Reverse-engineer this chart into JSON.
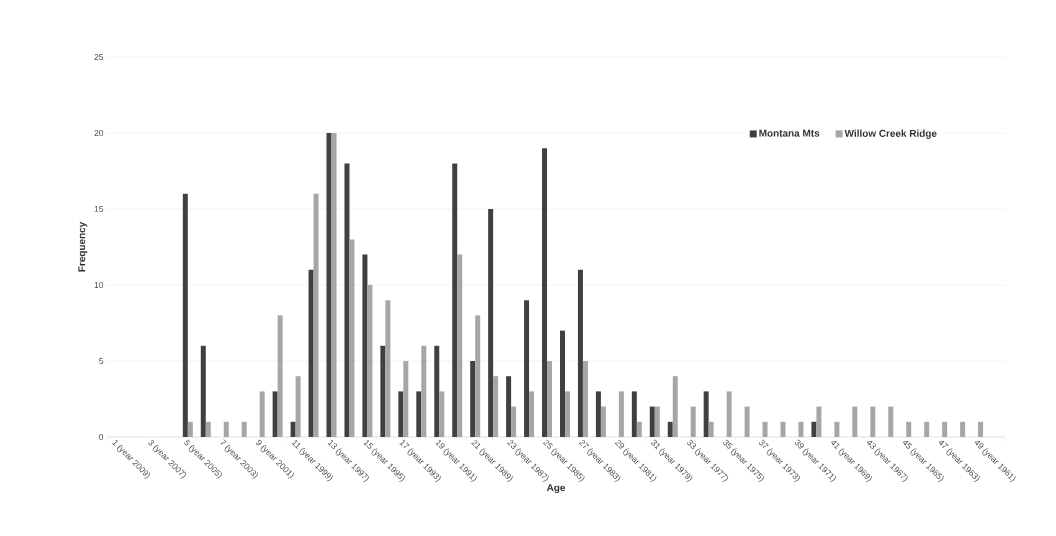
{
  "chart_data": {
    "type": "bar",
    "xlabel": "Age",
    "ylabel": "Frequency",
    "categories": [
      "1 (year 2009)",
      null,
      "3 (year 2007)",
      null,
      "5 (year 2005)",
      null,
      "7 (year 2003)",
      null,
      "9 (year 2001)",
      null,
      "11 (year 1999)",
      null,
      "13 (year 1997)",
      null,
      "15 (year 1995)",
      null,
      "17 (year 1993)",
      null,
      "19 (year 1991)",
      null,
      "21 (year 1989)",
      null,
      "23 (year 1987)",
      null,
      "25 (year 1985)",
      null,
      "27 (year 1983)",
      null,
      "29 (year 1981)",
      null,
      "31 (year 1979)",
      null,
      "33 (year 1977)",
      null,
      "35 (year 1975)",
      null,
      "37 (year 1973)",
      null,
      "39 (year 1971)",
      null,
      "41 (year 1969)",
      null,
      "43 (year 1967)",
      null,
      "45 (year 1965)",
      null,
      "47 (year 1963)",
      null,
      "49 (year 1961)",
      null
    ],
    "series": [
      {
        "name": "Montana Mts",
        "color": "#404040",
        "values": [
          0,
          0,
          0,
          0,
          16,
          6,
          0,
          0,
          0,
          3,
          1,
          11,
          20,
          18,
          12,
          6,
          3,
          3,
          6,
          18,
          5,
          15,
          4,
          9,
          19,
          7,
          11,
          3,
          0,
          3,
          2,
          1,
          0,
          3,
          0,
          0,
          0,
          0,
          0,
          1,
          0,
          0,
          0,
          0,
          0,
          0,
          0,
          0,
          0,
          0
        ]
      },
      {
        "name": "Willow Creek Ridge",
        "color": "#a6a6a6",
        "values": [
          0,
          0,
          0,
          0,
          1,
          1,
          1,
          1,
          3,
          8,
          4,
          16,
          20,
          13,
          10,
          9,
          5,
          6,
          3,
          12,
          8,
          4,
          2,
          3,
          5,
          3,
          5,
          2,
          3,
          1,
          2,
          4,
          2,
          1,
          3,
          2,
          1,
          1,
          1,
          2,
          1,
          2,
          2,
          2,
          1,
          1,
          1,
          1,
          1,
          0
        ]
      }
    ],
    "ylim": [
      0,
      25
    ],
    "yticks": [
      0,
      5,
      10,
      15,
      20,
      25
    ],
    "grid": "y",
    "legend": "top right"
  }
}
